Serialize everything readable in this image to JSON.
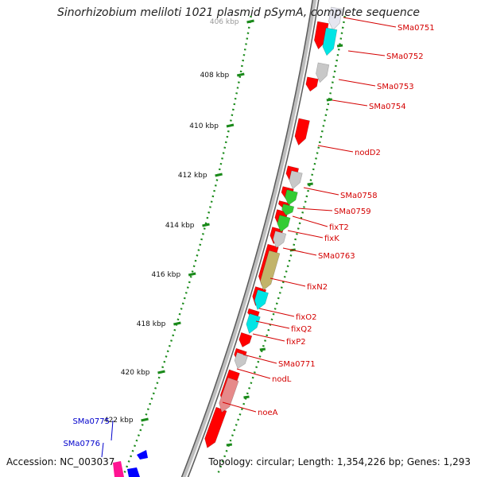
{
  "title": "Sinorhizobium meliloti 1021 plasmid pSymA, complete sequence",
  "footer": {
    "accession": "Accession: NC_003037",
    "summary": "Topology: circular; Length: 1,354,226 bp; Genes: 1,293"
  },
  "colors": {
    "backbone": "#8a8a8a",
    "gene_red": "#ff0000",
    "label_red": "#d40000",
    "label_blue": "#0000cc",
    "tick_green": "#1a8a1a",
    "cyan": "#00e5e5",
    "green": "#33cc33",
    "olive": "#c2b46a",
    "gray": "#c8c8c8",
    "pink": "#e68a8a",
    "blue": "#0000ff",
    "magenta": "#ff1493"
  },
  "ticks": [
    {
      "label": "406 kbp",
      "faded": true
    },
    {
      "label": "408 kbp"
    },
    {
      "label": "410 kbp"
    },
    {
      "label": "412 kbp"
    },
    {
      "label": "414 kbp"
    },
    {
      "label": "416 kbp"
    },
    {
      "label": "418 kbp"
    },
    {
      "label": "420 kbp"
    },
    {
      "label": "422 kbp"
    }
  ],
  "gene_labels": [
    {
      "label": "SMa0751",
      "color": "red"
    },
    {
      "label": "SMa0752",
      "color": "red"
    },
    {
      "label": "SMa0753",
      "color": "red"
    },
    {
      "label": "SMa0754",
      "color": "red"
    },
    {
      "label": "nodD2",
      "color": "red"
    },
    {
      "label": "SMa0758",
      "color": "red"
    },
    {
      "label": "SMa0759",
      "color": "red"
    },
    {
      "label": "fixT2",
      "color": "red"
    },
    {
      "label": "fixK",
      "color": "red"
    },
    {
      "label": "SMa0763",
      "color": "red"
    },
    {
      "label": "fixN2",
      "color": "red"
    },
    {
      "label": "fixO2",
      "color": "red"
    },
    {
      "label": "fixQ2",
      "color": "red"
    },
    {
      "label": "fixP2",
      "color": "red"
    },
    {
      "label": "SMa0771",
      "color": "red"
    },
    {
      "label": "nodL",
      "color": "red"
    },
    {
      "label": "noeA",
      "color": "red"
    },
    {
      "label": "SMa0775",
      "color": "blue"
    },
    {
      "label": "SMa0776",
      "color": "blue"
    }
  ]
}
